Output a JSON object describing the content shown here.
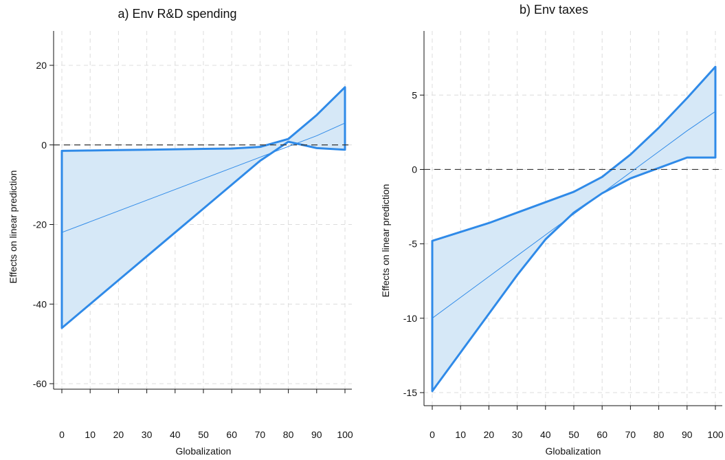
{
  "colors": {
    "band_fill": "#d6e8f7",
    "band_stroke": "#2f8ae8",
    "point_line": "#2f8ae8",
    "grid": "#dcdcdc"
  },
  "chart_data": [
    {
      "id": "a",
      "type": "area",
      "title": "a) Env R&D spending",
      "xlabel": "Globalization",
      "ylabel": "Effects on linear prediction",
      "x": [
        0,
        10,
        20,
        30,
        40,
        50,
        60,
        70,
        80,
        90,
        100
      ],
      "xticks": [
        "0",
        "10",
        "20",
        "30",
        "40",
        "50",
        "60",
        "70",
        "80",
        "90",
        "100"
      ],
      "yticks": [
        20,
        0,
        -20,
        -40,
        -60
      ],
      "ylim": [
        -60,
        20
      ],
      "xlim": [
        0,
        100
      ],
      "reference_y": 0,
      "grid": true,
      "series": [
        {
          "role": "estimate",
          "values": [
            -22,
            -19.3,
            -16.6,
            -13.9,
            -11.2,
            -8.5,
            -5.8,
            -3.1,
            -0.4,
            2.3,
            5.5
          ]
        },
        {
          "role": "upper",
          "values": [
            -1.5,
            -1.4,
            -1.3,
            -1.2,
            -1.1,
            -1.0,
            -0.9,
            -0.5,
            1.5,
            7.5,
            14.5
          ]
        },
        {
          "role": "lower",
          "values": [
            -46,
            -40,
            -34,
            -28,
            -22,
            -16,
            -10,
            -4,
            0.8,
            -0.8,
            -1.2
          ]
        }
      ]
    },
    {
      "id": "b",
      "type": "area",
      "title": "b) Env taxes",
      "xlabel": "Globalization",
      "ylabel": "Effects on linear prediction",
      "x": [
        0,
        10,
        20,
        30,
        40,
        50,
        60,
        70,
        80,
        90,
        100
      ],
      "xticks": [
        "0",
        "10",
        "20",
        "30",
        "40",
        "50",
        "60",
        "70",
        "80",
        "90",
        "100"
      ],
      "yticks": [
        5,
        0,
        -5,
        -10,
        -15
      ],
      "ylim": [
        -15,
        7
      ],
      "xlim": [
        0,
        100
      ],
      "reference_y": 0,
      "grid": true,
      "series": [
        {
          "role": "estimate",
          "values": [
            -10,
            -8.6,
            -7.2,
            -5.8,
            -4.4,
            -3.0,
            -1.6,
            -0.2,
            1.2,
            2.6,
            3.9
          ]
        },
        {
          "role": "upper",
          "values": [
            -4.8,
            -4.2,
            -3.6,
            -2.9,
            -2.2,
            -1.5,
            -0.5,
            1.0,
            2.8,
            4.8,
            6.9
          ]
        },
        {
          "role": "lower",
          "values": [
            -14.9,
            -12.3,
            -9.7,
            -7.1,
            -4.7,
            -2.9,
            -1.6,
            -0.6,
            0.1,
            0.8,
            0.8
          ]
        }
      ]
    }
  ]
}
